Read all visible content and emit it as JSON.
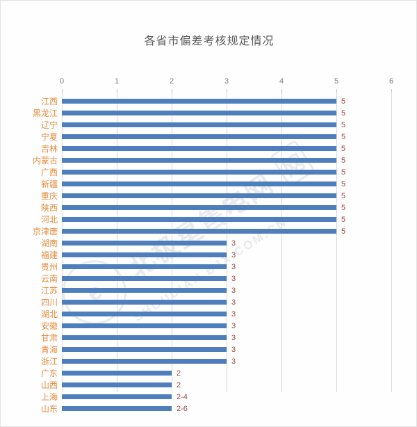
{
  "title": "各省市偏差考核规定情况",
  "watermark": {
    "cn": "北极星售电网",
    "seal": "网",
    "en": "SHOUDIAN.BJX.COM.CN"
  },
  "colors": {
    "bar": "#4e7ebb",
    "category_label": "#e78c3c",
    "value_label": "#9b4a42",
    "axis_label": "#7f7f7f",
    "title": "#595959",
    "gridline": "#d9d9d9",
    "background": "#fefefe"
  },
  "chart_data": {
    "type": "bar",
    "orientation": "horizontal",
    "title": "各省市偏差考核规定情况",
    "axis_position": "top",
    "grid": true,
    "xlim": [
      0,
      6
    ],
    "x_ticks": [
      0,
      1,
      2,
      3,
      4,
      5,
      6
    ],
    "categories": [
      "江西",
      "黑龙江",
      "辽宁",
      "宁夏",
      "吉林",
      "内蒙古",
      "广西",
      "新疆",
      "重庆",
      "陕西",
      "河北",
      "京津唐",
      "湖南",
      "福建",
      "贵州",
      "云南",
      "江苏",
      "四川",
      "湖北",
      "安徽",
      "甘肃",
      "青海",
      "浙江",
      "广东",
      "山西",
      "上海",
      "山东"
    ],
    "values": [
      5,
      5,
      5,
      5,
      5,
      5,
      5,
      5,
      5,
      5,
      5,
      5,
      3,
      3,
      3,
      3,
      3,
      3,
      3,
      3,
      3,
      3,
      3,
      2,
      2,
      2,
      2
    ],
    "value_labels": [
      "5",
      "5",
      "5",
      "5",
      "5",
      "5",
      "5",
      "5",
      "5",
      "5",
      "5",
      "5",
      "3",
      "3",
      "3",
      "3",
      "3",
      "3",
      "3",
      "3",
      "3",
      "3",
      "3",
      "2",
      "2",
      "2-4",
      "2-6"
    ]
  }
}
